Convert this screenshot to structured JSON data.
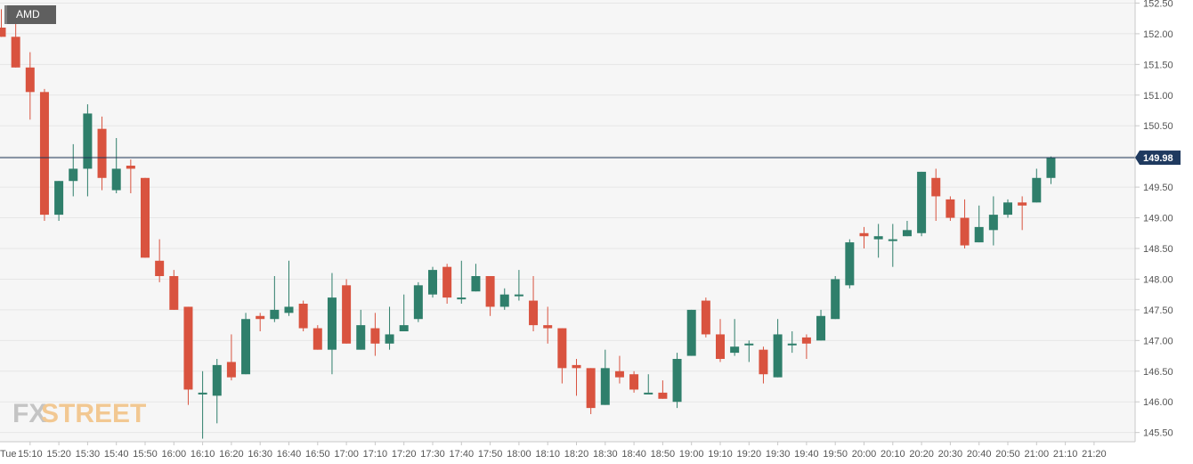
{
  "symbol": "AMD",
  "watermark": {
    "fx": "FX",
    "street": "STREET"
  },
  "colors": {
    "up": "#2f7f6b",
    "down": "#d9533f",
    "price_line": "#1d3557",
    "grid": "#e6e6e6",
    "plot_bg": "#f6f6f6",
    "price_badge_bg": "#1f3a5f",
    "watermark_fx": "#b8b8b8",
    "watermark_street": "#f0c48a"
  },
  "chart_data": {
    "type": "candlestick",
    "interval_minutes": 5,
    "current_price": 149.98,
    "current_price_label": "149.98",
    "ylim": [
      145.35,
      152.55
    ],
    "y_ticks": [
      "145.50",
      "146.00",
      "146.50",
      "147.00",
      "147.50",
      "148.00",
      "148.50",
      "149.00",
      "149.50",
      "150.00",
      "150.50",
      "151.00",
      "151.50",
      "152.00",
      "152.50"
    ],
    "x_ticks": [
      "Tue",
      "15:10",
      "15:20",
      "15:30",
      "15:40",
      "15:50",
      "16:00",
      "16:10",
      "16:20",
      "16:30",
      "16:40",
      "16:50",
      "17:00",
      "17:10",
      "17:20",
      "17:30",
      "17:40",
      "17:50",
      "18:00",
      "18:10",
      "18:20",
      "18:30",
      "18:40",
      "18:50",
      "19:00",
      "19:10",
      "19:20",
      "19:30",
      "19:40",
      "19:50",
      "20:00",
      "20:10",
      "20:20",
      "20:30",
      "20:40",
      "20:50",
      "21:00",
      "21:10",
      "21:20"
    ],
    "candles": [
      {
        "t": "15:00",
        "o": 152.1,
        "h": 152.4,
        "l": 151.95,
        "c": 151.95
      },
      {
        "t": "15:05",
        "o": 151.95,
        "h": 152.3,
        "l": 151.45,
        "c": 151.45
      },
      {
        "t": "15:10",
        "o": 151.45,
        "h": 151.7,
        "l": 150.6,
        "c": 151.05
      },
      {
        "t": "15:15",
        "o": 151.05,
        "h": 151.1,
        "l": 148.95,
        "c": 149.05
      },
      {
        "t": "15:20",
        "o": 149.05,
        "h": 149.6,
        "l": 148.95,
        "c": 149.6
      },
      {
        "t": "15:25",
        "o": 149.6,
        "h": 150.2,
        "l": 149.35,
        "c": 149.8
      },
      {
        "t": "15:30",
        "o": 149.8,
        "h": 150.85,
        "l": 149.35,
        "c": 150.7
      },
      {
        "t": "15:35",
        "o": 150.45,
        "h": 150.65,
        "l": 149.45,
        "c": 149.65
      },
      {
        "t": "15:40",
        "o": 149.45,
        "h": 150.3,
        "l": 149.4,
        "c": 149.8
      },
      {
        "t": "15:45",
        "o": 149.85,
        "h": 149.95,
        "l": 149.4,
        "c": 149.8
      },
      {
        "t": "15:50",
        "o": 149.65,
        "h": 149.65,
        "l": 148.35,
        "c": 148.35
      },
      {
        "t": "15:55",
        "o": 148.3,
        "h": 148.65,
        "l": 147.95,
        "c": 148.05
      },
      {
        "t": "16:00",
        "o": 148.05,
        "h": 148.15,
        "l": 147.5,
        "c": 147.5
      },
      {
        "t": "16:05",
        "o": 147.55,
        "h": 147.55,
        "l": 145.95,
        "c": 146.2
      },
      {
        "t": "16:10",
        "o": 146.15,
        "h": 146.5,
        "l": 145.4,
        "c": 146.15
      },
      {
        "t": "16:15",
        "o": 146.1,
        "h": 146.7,
        "l": 145.65,
        "c": 146.6
      },
      {
        "t": "16:20",
        "o": 146.65,
        "h": 147.1,
        "l": 146.35,
        "c": 146.4
      },
      {
        "t": "16:25",
        "o": 146.45,
        "h": 147.45,
        "l": 146.45,
        "c": 147.35
      },
      {
        "t": "16:30",
        "o": 147.4,
        "h": 147.45,
        "l": 147.15,
        "c": 147.35
      },
      {
        "t": "16:35",
        "o": 147.35,
        "h": 148.05,
        "l": 147.3,
        "c": 147.5
      },
      {
        "t": "16:40",
        "o": 147.45,
        "h": 148.3,
        "l": 147.4,
        "c": 147.55
      },
      {
        "t": "16:45",
        "o": 147.6,
        "h": 147.65,
        "l": 147.15,
        "c": 147.2
      },
      {
        "t": "16:50",
        "o": 147.2,
        "h": 147.25,
        "l": 146.85,
        "c": 146.85
      },
      {
        "t": "16:55",
        "o": 146.85,
        "h": 148.1,
        "l": 146.45,
        "c": 147.7
      },
      {
        "t": "17:00",
        "o": 147.9,
        "h": 148.0,
        "l": 146.95,
        "c": 146.95
      },
      {
        "t": "17:05",
        "o": 146.85,
        "h": 147.5,
        "l": 146.85,
        "c": 147.25
      },
      {
        "t": "17:10",
        "o": 147.2,
        "h": 147.45,
        "l": 146.75,
        "c": 146.95
      },
      {
        "t": "17:15",
        "o": 146.95,
        "h": 147.55,
        "l": 146.85,
        "c": 147.1
      },
      {
        "t": "17:20",
        "o": 147.15,
        "h": 147.75,
        "l": 147.15,
        "c": 147.25
      },
      {
        "t": "17:25",
        "o": 147.35,
        "h": 147.95,
        "l": 147.3,
        "c": 147.9
      },
      {
        "t": "17:30",
        "o": 147.75,
        "h": 148.2,
        "l": 147.7,
        "c": 148.15
      },
      {
        "t": "17:35",
        "o": 148.2,
        "h": 148.25,
        "l": 147.6,
        "c": 147.7
      },
      {
        "t": "17:40",
        "o": 147.7,
        "h": 148.3,
        "l": 147.6,
        "c": 147.7
      },
      {
        "t": "17:45",
        "o": 147.8,
        "h": 148.25,
        "l": 147.8,
        "c": 148.05
      },
      {
        "t": "17:50",
        "o": 148.05,
        "h": 148.05,
        "l": 147.4,
        "c": 147.55
      },
      {
        "t": "17:55",
        "o": 147.55,
        "h": 147.85,
        "l": 147.5,
        "c": 147.75
      },
      {
        "t": "18:00",
        "o": 147.75,
        "h": 148.15,
        "l": 147.65,
        "c": 147.75
      },
      {
        "t": "18:05",
        "o": 147.65,
        "h": 148.05,
        "l": 147.15,
        "c": 147.25
      },
      {
        "t": "18:10",
        "o": 147.25,
        "h": 147.55,
        "l": 146.95,
        "c": 147.2
      },
      {
        "t": "18:15",
        "o": 147.2,
        "h": 147.2,
        "l": 146.3,
        "c": 146.55
      },
      {
        "t": "18:20",
        "o": 146.6,
        "h": 146.7,
        "l": 146.1,
        "c": 146.55
      },
      {
        "t": "18:25",
        "o": 146.55,
        "h": 146.55,
        "l": 145.8,
        "c": 145.9
      },
      {
        "t": "18:30",
        "o": 145.95,
        "h": 146.85,
        "l": 145.95,
        "c": 146.55
      },
      {
        "t": "18:35",
        "o": 146.5,
        "h": 146.75,
        "l": 146.3,
        "c": 146.4
      },
      {
        "t": "18:40",
        "o": 146.45,
        "h": 146.5,
        "l": 146.15,
        "c": 146.2
      },
      {
        "t": "18:45",
        "o": 146.15,
        "h": 146.45,
        "l": 146.15,
        "c": 146.15
      },
      {
        "t": "18:50",
        "o": 146.15,
        "h": 146.35,
        "l": 146.05,
        "c": 146.05
      },
      {
        "t": "18:55",
        "o": 146.0,
        "h": 146.8,
        "l": 145.9,
        "c": 146.7
      },
      {
        "t": "19:00",
        "o": 146.75,
        "h": 147.5,
        "l": 146.75,
        "c": 147.5
      },
      {
        "t": "19:05",
        "o": 147.65,
        "h": 147.7,
        "l": 147.05,
        "c": 147.1
      },
      {
        "t": "19:10",
        "o": 147.1,
        "h": 147.35,
        "l": 146.65,
        "c": 146.7
      },
      {
        "t": "19:15",
        "o": 146.8,
        "h": 147.35,
        "l": 146.75,
        "c": 146.9
      },
      {
        "t": "19:20",
        "o": 146.95,
        "h": 147.0,
        "l": 146.65,
        "c": 146.95
      },
      {
        "t": "19:25",
        "o": 146.85,
        "h": 146.9,
        "l": 146.3,
        "c": 146.45
      },
      {
        "t": "19:30",
        "o": 146.4,
        "h": 147.35,
        "l": 146.4,
        "c": 147.1
      },
      {
        "t": "19:35",
        "o": 146.95,
        "h": 147.15,
        "l": 146.8,
        "c": 146.95
      },
      {
        "t": "19:40",
        "o": 147.05,
        "h": 147.1,
        "l": 146.7,
        "c": 146.95
      },
      {
        "t": "19:45",
        "o": 147.0,
        "h": 147.5,
        "l": 147.0,
        "c": 147.4
      },
      {
        "t": "19:50",
        "o": 147.35,
        "h": 148.05,
        "l": 147.35,
        "c": 148.0
      },
      {
        "t": "19:55",
        "o": 147.9,
        "h": 148.65,
        "l": 147.85,
        "c": 148.6
      },
      {
        "t": "20:00",
        "o": 148.75,
        "h": 148.85,
        "l": 148.5,
        "c": 148.7
      },
      {
        "t": "20:05",
        "o": 148.65,
        "h": 148.9,
        "l": 148.35,
        "c": 148.7
      },
      {
        "t": "20:10",
        "o": 148.65,
        "h": 148.9,
        "l": 148.2,
        "c": 148.65
      },
      {
        "t": "20:15",
        "o": 148.7,
        "h": 148.95,
        "l": 148.7,
        "c": 148.8
      },
      {
        "t": "20:20",
        "o": 148.75,
        "h": 149.75,
        "l": 148.7,
        "c": 149.75
      },
      {
        "t": "20:25",
        "o": 149.65,
        "h": 149.8,
        "l": 148.95,
        "c": 149.35
      },
      {
        "t": "20:30",
        "o": 149.3,
        "h": 149.35,
        "l": 148.95,
        "c": 149.0
      },
      {
        "t": "20:35",
        "o": 149.0,
        "h": 149.3,
        "l": 148.5,
        "c": 148.55
      },
      {
        "t": "20:40",
        "o": 148.6,
        "h": 149.2,
        "l": 148.6,
        "c": 148.85
      },
      {
        "t": "20:45",
        "o": 148.8,
        "h": 149.35,
        "l": 148.55,
        "c": 149.05
      },
      {
        "t": "20:50",
        "o": 149.05,
        "h": 149.3,
        "l": 149.0,
        "c": 149.25
      },
      {
        "t": "20:55",
        "o": 149.25,
        "h": 149.35,
        "l": 148.8,
        "c": 149.2
      },
      {
        "t": "21:00",
        "o": 149.25,
        "h": 149.8,
        "l": 149.25,
        "c": 149.65
      },
      {
        "t": "21:05",
        "o": 149.65,
        "h": 150.0,
        "l": 149.55,
        "c": 149.98
      }
    ]
  }
}
